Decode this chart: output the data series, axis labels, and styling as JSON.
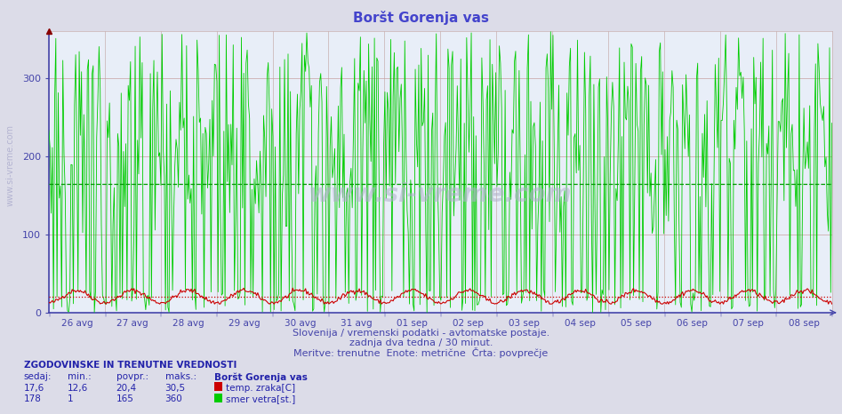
{
  "title": "Boršt Gorenja vas",
  "title_color": "#4444cc",
  "background_color": "#e8e8f0",
  "plot_bg_color": "#e8eef8",
  "xlim": [
    0,
    671
  ],
  "ylim": [
    0,
    360
  ],
  "yticks": [
    0,
    100,
    200,
    300
  ],
  "xlabel_dates": [
    "26 avg",
    "27 avg",
    "28 avg",
    "29 avg",
    "30 avg",
    "31 avg",
    "01 sep",
    "02 sep",
    "03 sep",
    "04 sep",
    "05 sep",
    "06 sep",
    "07 sep",
    "08 sep"
  ],
  "grid_color_v": "#c8b0b0",
  "grid_color_h": "#c8a0a0",
  "axis_color": "#4444aa",
  "tick_color": "#4444aa",
  "subtitle1": "Slovenija / vremenski podatki - avtomatske postaje.",
  "subtitle2": "zadnja dva tedna / 30 minut.",
  "subtitle3": "Meritve: trenutne  Enote: metrične  Črta: povprečje",
  "subtitle_color": "#4444aa",
  "wind_avg_line_color": "#009900",
  "wind_avg_line_value": 165,
  "temp_avg_line_color": "#cc0000",
  "temp_avg_line_value": 20.4,
  "temp_curr": "17,6",
  "temp_min": "12,6",
  "temp_avg": "20,4",
  "temp_max": "30,5",
  "wind_curr": "178",
  "wind_min": "1",
  "wind_avg": "165",
  "wind_max": "360",
  "temp_color": "#cc0000",
  "wind_color": "#00cc00",
  "watermark_side": "www.si-vreme.com",
  "watermark_center": "www.si-vreme.com",
  "watermark_color": "#aaaacc",
  "n_points": 672,
  "info_header": "ZGODOVINSKE IN TRENUTNE VREDNOSTI",
  "col_sedaj": "sedaj:",
  "col_min": "min.:",
  "col_povpr": "povpr.:",
  "col_maks": "maks.:",
  "station_label": "Boršt Gorenja vas",
  "temp_label": "temp. zraka[C]",
  "wind_label": "smer vetra[st.]",
  "fig_bg": "#dcdce8"
}
